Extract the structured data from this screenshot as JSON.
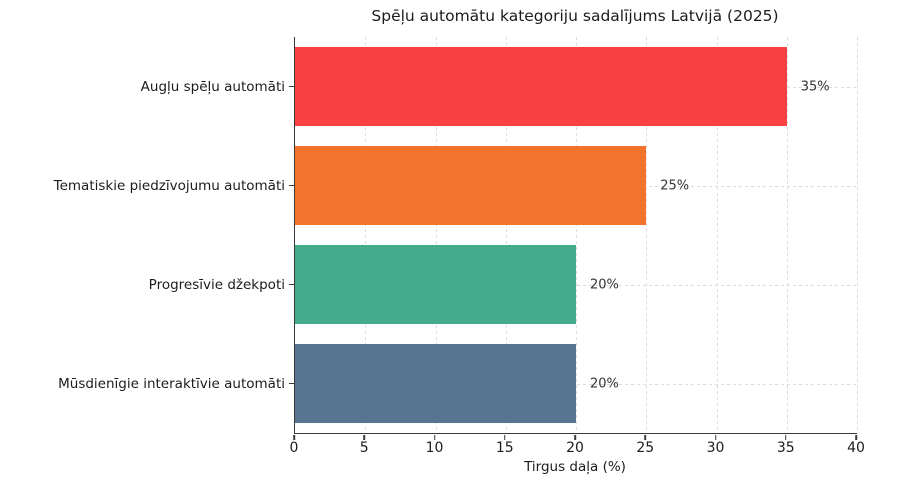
{
  "chart_data": {
    "type": "bar",
    "orientation": "horizontal",
    "title": "Spēļu automātu kategoriju sadalījums Latvijā (2025)",
    "categories": [
      "Augļu spēļu automāti",
      "Tematiskie piedzīvojumu automāti",
      "Progresīvie džekpoti",
      "Mūsdienīgie interaktīvie automāti"
    ],
    "values": [
      35,
      25,
      20,
      20
    ],
    "value_labels": [
      "35%",
      "25%",
      "20%",
      "20%"
    ],
    "bar_colors": [
      "#f94144",
      "#f3722c",
      "#43aa8b",
      "#577590"
    ],
    "xlabel": "Tirgus daļa (%)",
    "ylabel": "",
    "xlim": [
      0,
      40
    ],
    "xticks": [
      0,
      5,
      10,
      15,
      20,
      25,
      30,
      35,
      40
    ],
    "grid": "dashed",
    "legend": "none"
  },
  "colors": {
    "background": "#ffffff",
    "grid": "#dcdcdc",
    "axis": "#3a3a3a",
    "text": "#1c1c1c",
    "value_text": "#333333"
  }
}
